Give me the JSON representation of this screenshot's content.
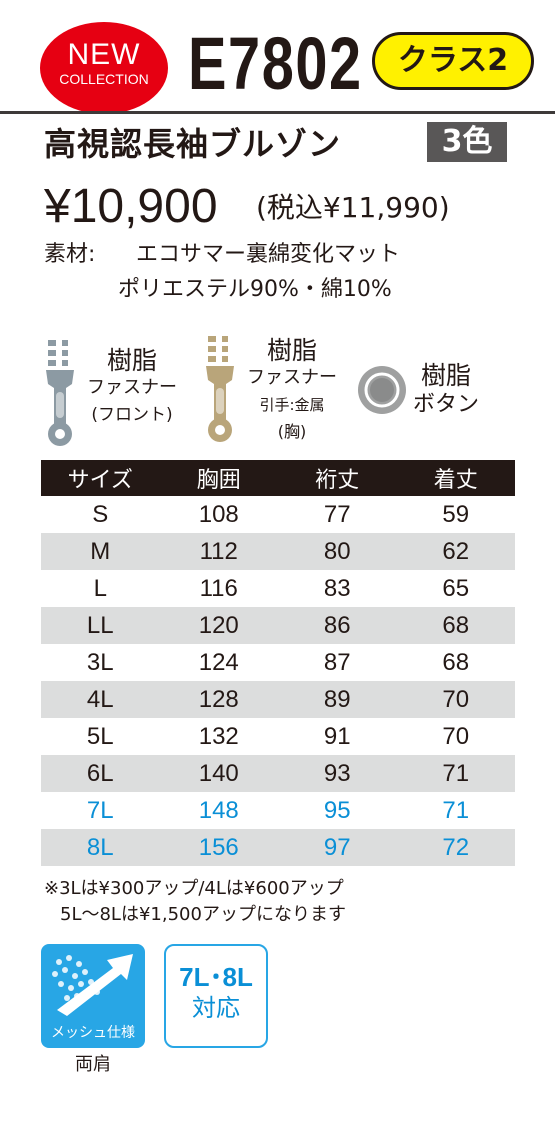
{
  "header": {
    "new_line1": "NEW",
    "new_line2": "COLLECTION",
    "model": "E7802",
    "class_label": "クラス2"
  },
  "product": {
    "name": "高視認長袖ブルゾン",
    "colors": "3色",
    "price": "¥10,900",
    "price_tax": "(税込¥11,990)",
    "material_label": "素材:",
    "material_line1": "エコサマー裏綿変化マット",
    "material_line2": "ポリエステル90%・綿10%"
  },
  "parts": {
    "zip_front": {
      "title": "樹脂",
      "sub": "ファスナー",
      "note": "(フロント)",
      "icon": "zipper-icon"
    },
    "zip_chest": {
      "title": "樹脂",
      "sub": "ファスナー",
      "note1": "引手:金属",
      "note2": "(胸)",
      "icon": "zipper-icon"
    },
    "button": {
      "title": "樹脂",
      "sub": "ボタン",
      "icon": "button-icon"
    }
  },
  "size_table": {
    "headers": [
      "サイズ",
      "胸囲",
      "裄丈",
      "着丈"
    ],
    "rows": [
      [
        "S",
        "108",
        "77",
        "59"
      ],
      [
        "M",
        "112",
        "80",
        "62"
      ],
      [
        "L",
        "116",
        "83",
        "65"
      ],
      [
        "LL",
        "120",
        "86",
        "68"
      ],
      [
        "3L",
        "124",
        "87",
        "68"
      ],
      [
        "4L",
        "128",
        "89",
        "70"
      ],
      [
        "5L",
        "132",
        "91",
        "70"
      ],
      [
        "6L",
        "140",
        "93",
        "71"
      ],
      [
        "7L",
        "148",
        "95",
        "71"
      ],
      [
        "8L",
        "156",
        "97",
        "72"
      ]
    ]
  },
  "notes": {
    "line1": "※3Lは¥300アップ/4Lは¥600アップ",
    "line2": "5L〜8Lは¥1,500アップになります"
  },
  "features": {
    "mesh_label": "メッシュ仕様",
    "mesh_caption": "両肩",
    "size_badge_line1": "7L･8L",
    "size_badge_line2": "対応"
  },
  "colors": {
    "new_badge": "#e60012",
    "class_badge": "#fff100",
    "color_badge": "#595757",
    "zipper_front": "#8c9aa3",
    "zipper_chest": "#b9a57a",
    "accent_blue": "#28a6e5",
    "large_size_text": "#0a8fd6"
  }
}
